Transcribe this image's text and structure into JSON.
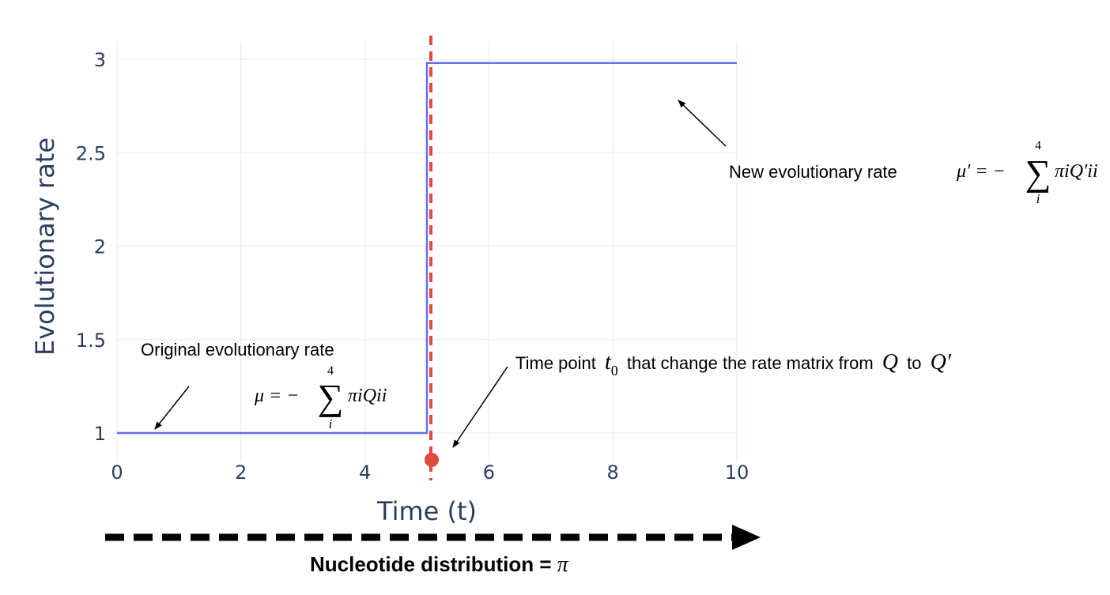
{
  "chart_data": {
    "type": "line",
    "xlabel": "Time (t)",
    "ylabel": "Evolutionary rate",
    "xlim": [
      0,
      10
    ],
    "ylim": [
      0.85,
      3.1
    ],
    "grid": true,
    "x_ticks": [
      0,
      2,
      4,
      6,
      8,
      10
    ],
    "x_tick_labels": [
      "0",
      "2",
      "4",
      "6",
      "8",
      "10"
    ],
    "y_ticks": [
      1,
      1.5,
      2,
      2.5,
      3
    ],
    "y_tick_labels": [
      "1",
      "1.5",
      "2",
      "2.5",
      "3"
    ],
    "series": [
      {
        "shape": "step",
        "color": "#636efa",
        "x": [
          0,
          5,
          5,
          10
        ],
        "y": [
          1,
          1,
          2.98,
          2.98
        ]
      }
    ],
    "change_point": {
      "x": 5,
      "marker_y": 0.86,
      "line_color": "#e04b3b",
      "line_style": "dashed"
    },
    "annotations": {
      "original_rate": "Original evolutionary rate",
      "new_rate": "New evolutionary rate",
      "time_point_prefix": "Time point",
      "time_point_middle": "that change the rate matrix from",
      "time_point_to": "to",
      "t0_symbol": "t",
      "t0_subscript": "0",
      "q_symbol": "Q",
      "q_prime_symbol": "Q′",
      "mu_formula_lhs": "μ = −",
      "mu_prime_formula_lhs": "μ′ = −",
      "sum_symbol": "∑",
      "sum_upper": "4",
      "sum_lower": "i",
      "mu_summand": "πiQii",
      "mu_prime_summand": "πiQ′ii"
    },
    "bottom_label_text": "Nucleotide distribution = ",
    "bottom_label_symbol": "π"
  }
}
